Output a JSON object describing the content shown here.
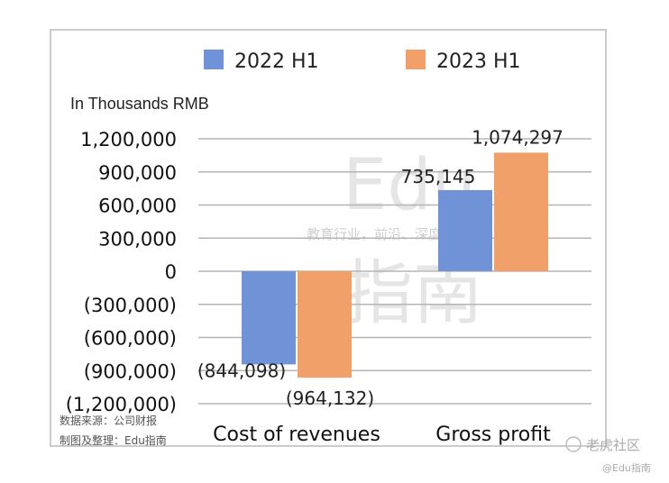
{
  "chart_data": {
    "type": "bar",
    "unit_label": "In Thousands RMB",
    "categories": [
      "Cost of revenues",
      "Gross profit"
    ],
    "series": [
      {
        "name": "2022 H1",
        "color": "#6f93d6",
        "values": [
          -844098,
          735145
        ],
        "labels": [
          "(844,098)",
          "735,145"
        ]
      },
      {
        "name": "2023 H1",
        "color": "#f2a06a",
        "values": [
          -964132,
          1074297
        ],
        "labels": [
          "(964,132)",
          "1,074,297"
        ]
      }
    ],
    "ylim": [
      -1200000,
      1200000
    ],
    "yticks": [
      1200000,
      900000,
      600000,
      300000,
      0,
      -300000,
      -600000,
      -900000,
      -1200000
    ],
    "ytick_labels": [
      "1,200,000",
      "900,000",
      "600,000",
      "300,000",
      "0",
      "(300,000)",
      "(600,000)",
      "(900,000)",
      "(1,200,000)"
    ],
    "legend_position": "top",
    "grid": true
  },
  "source_note": [
    "数据来源：公司财报",
    "制图及整理：Edu指南"
  ],
  "watermark": {
    "big": [
      "Edu",
      "指南"
    ],
    "tagline": "教育行业，前沿、深度、独家"
  },
  "corner_credit": {
    "brand": "老虎社区",
    "handle": "@Edu指南"
  }
}
